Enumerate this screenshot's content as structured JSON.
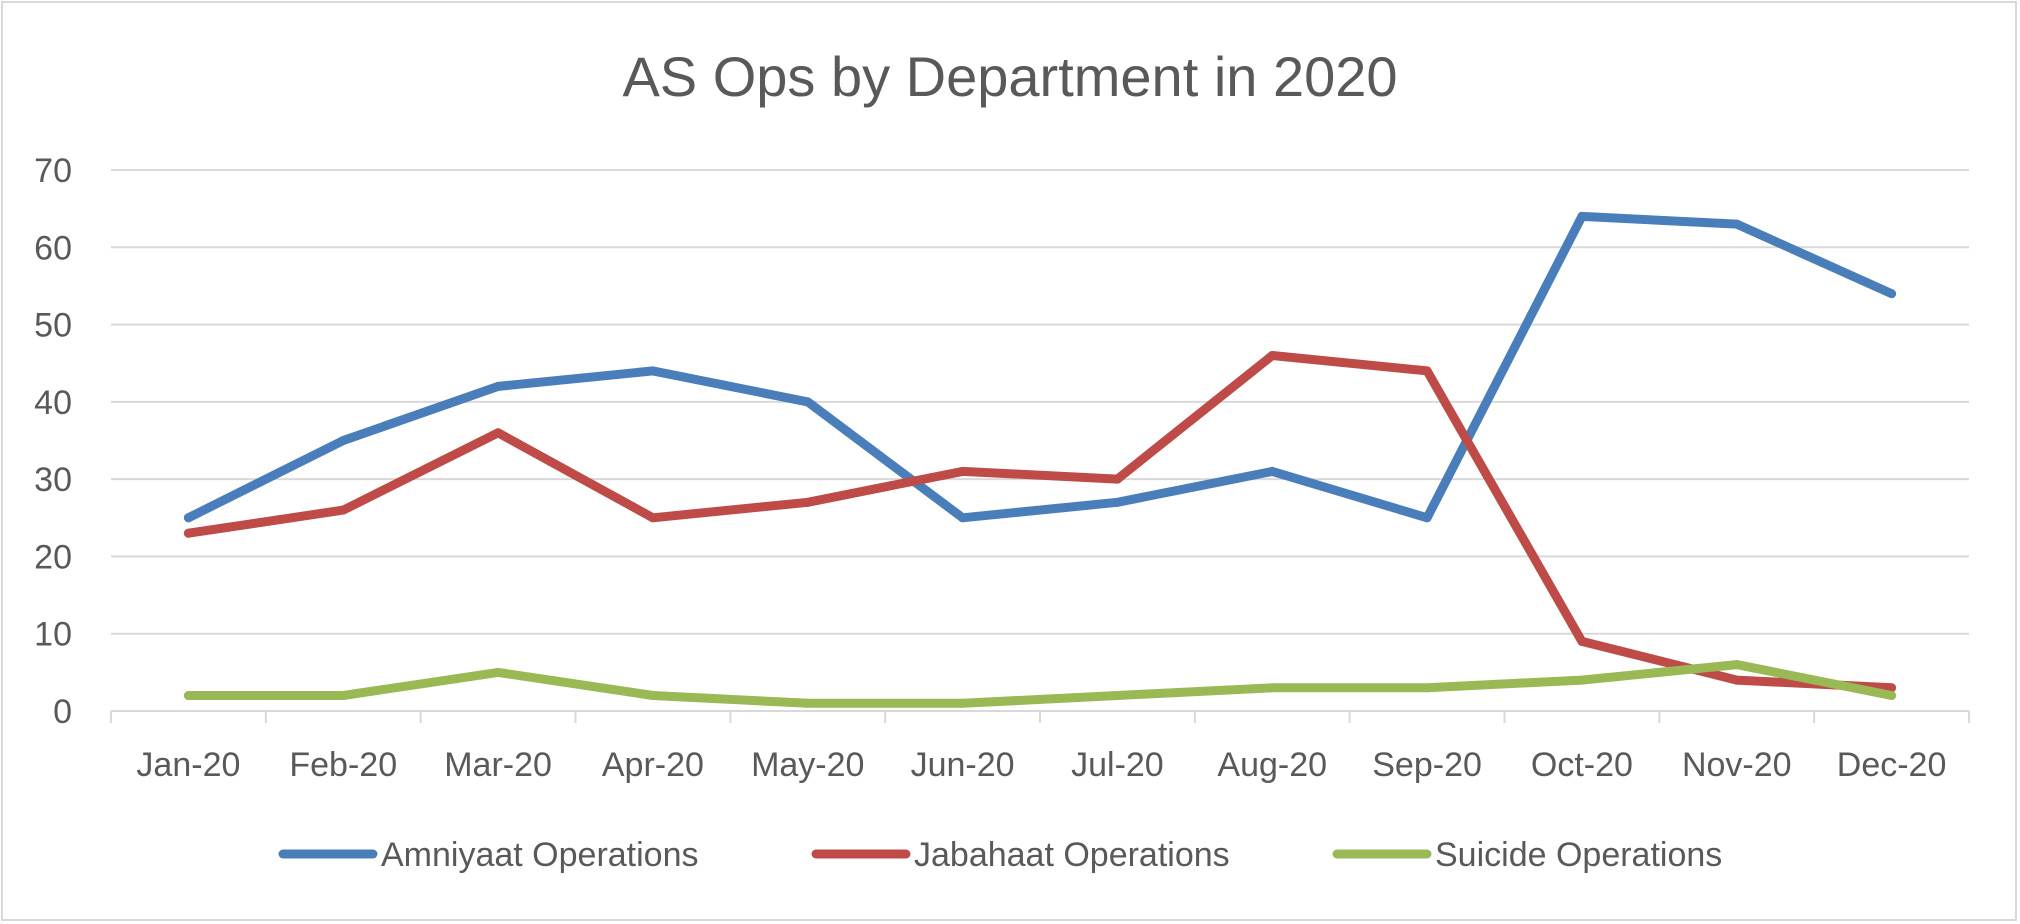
{
  "chart_data": {
    "type": "line",
    "title": "AS Ops by Department in 2020",
    "xlabel": "",
    "ylabel": "",
    "categories": [
      "Jan-20",
      "Feb-20",
      "Mar-20",
      "Apr-20",
      "May-20",
      "Jun-20",
      "Jul-20",
      "Aug-20",
      "Sep-20",
      "Oct-20",
      "Nov-20",
      "Dec-20"
    ],
    "ylim": [
      0,
      70
    ],
    "yticks": [
      0,
      10,
      20,
      30,
      40,
      50,
      60,
      70
    ],
    "grid": true,
    "legend_position": "bottom",
    "series": [
      {
        "name": "Amniyaat Operations",
        "color": "#4a7ebb",
        "values": [
          25,
          35,
          42,
          44,
          40,
          25,
          27,
          31,
          25,
          64,
          63,
          54
        ]
      },
      {
        "name": "Jabahaat Operations",
        "color": "#be4b48",
        "values": [
          23,
          26,
          36,
          25,
          27,
          31,
          30,
          46,
          44,
          9,
          4,
          3
        ]
      },
      {
        "name": "Suicide Operations",
        "color": "#98b954",
        "values": [
          2,
          2,
          5,
          2,
          1,
          1,
          2,
          3,
          3,
          4,
          6,
          2
        ]
      }
    ]
  }
}
